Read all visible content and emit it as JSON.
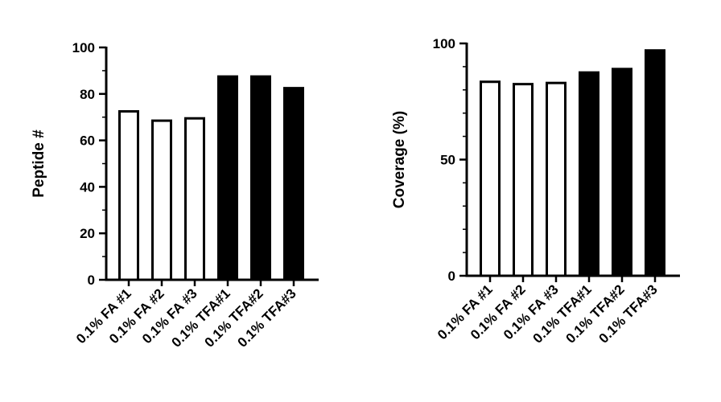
{
  "chart_data": [
    {
      "type": "bar",
      "categories": [
        "0.1% FA #1",
        "0.1% FA #2",
        "0.1% FA #3",
        "0.1% TFA#1",
        "0.1% TFA#2",
        "0.1% TFA#3"
      ],
      "values": [
        73,
        69,
        70,
        88,
        88,
        83
      ],
      "bar_fills": [
        "#ffffff",
        "#ffffff",
        "#ffffff",
        "#000000",
        "#000000",
        "#000000"
      ],
      "xlabel": "",
      "ylabel": "Peptide #",
      "ylim": [
        0,
        100
      ],
      "yticks": [
        "0",
        "20",
        "40",
        "60",
        "80",
        "100"
      ],
      "grid": false,
      "legend": "none"
    },
    {
      "type": "bar",
      "categories": [
        "0.1% FA #1",
        "0.1% FA #2",
        "0.1% FA #3",
        "0.1% TFA#1",
        "0.1% TFA#2",
        "0.1% TFA#3"
      ],
      "values": [
        84,
        83,
        83.5,
        88,
        89.5,
        97.5
      ],
      "bar_fills": [
        "#ffffff",
        "#ffffff",
        "#ffffff",
        "#000000",
        "#000000",
        "#000000"
      ],
      "xlabel": "",
      "ylabel": "Coverage (%)",
      "ylim": [
        0,
        100
      ],
      "yticks": [
        "0",
        "50",
        "100"
      ],
      "grid": false,
      "legend": "none"
    }
  ]
}
